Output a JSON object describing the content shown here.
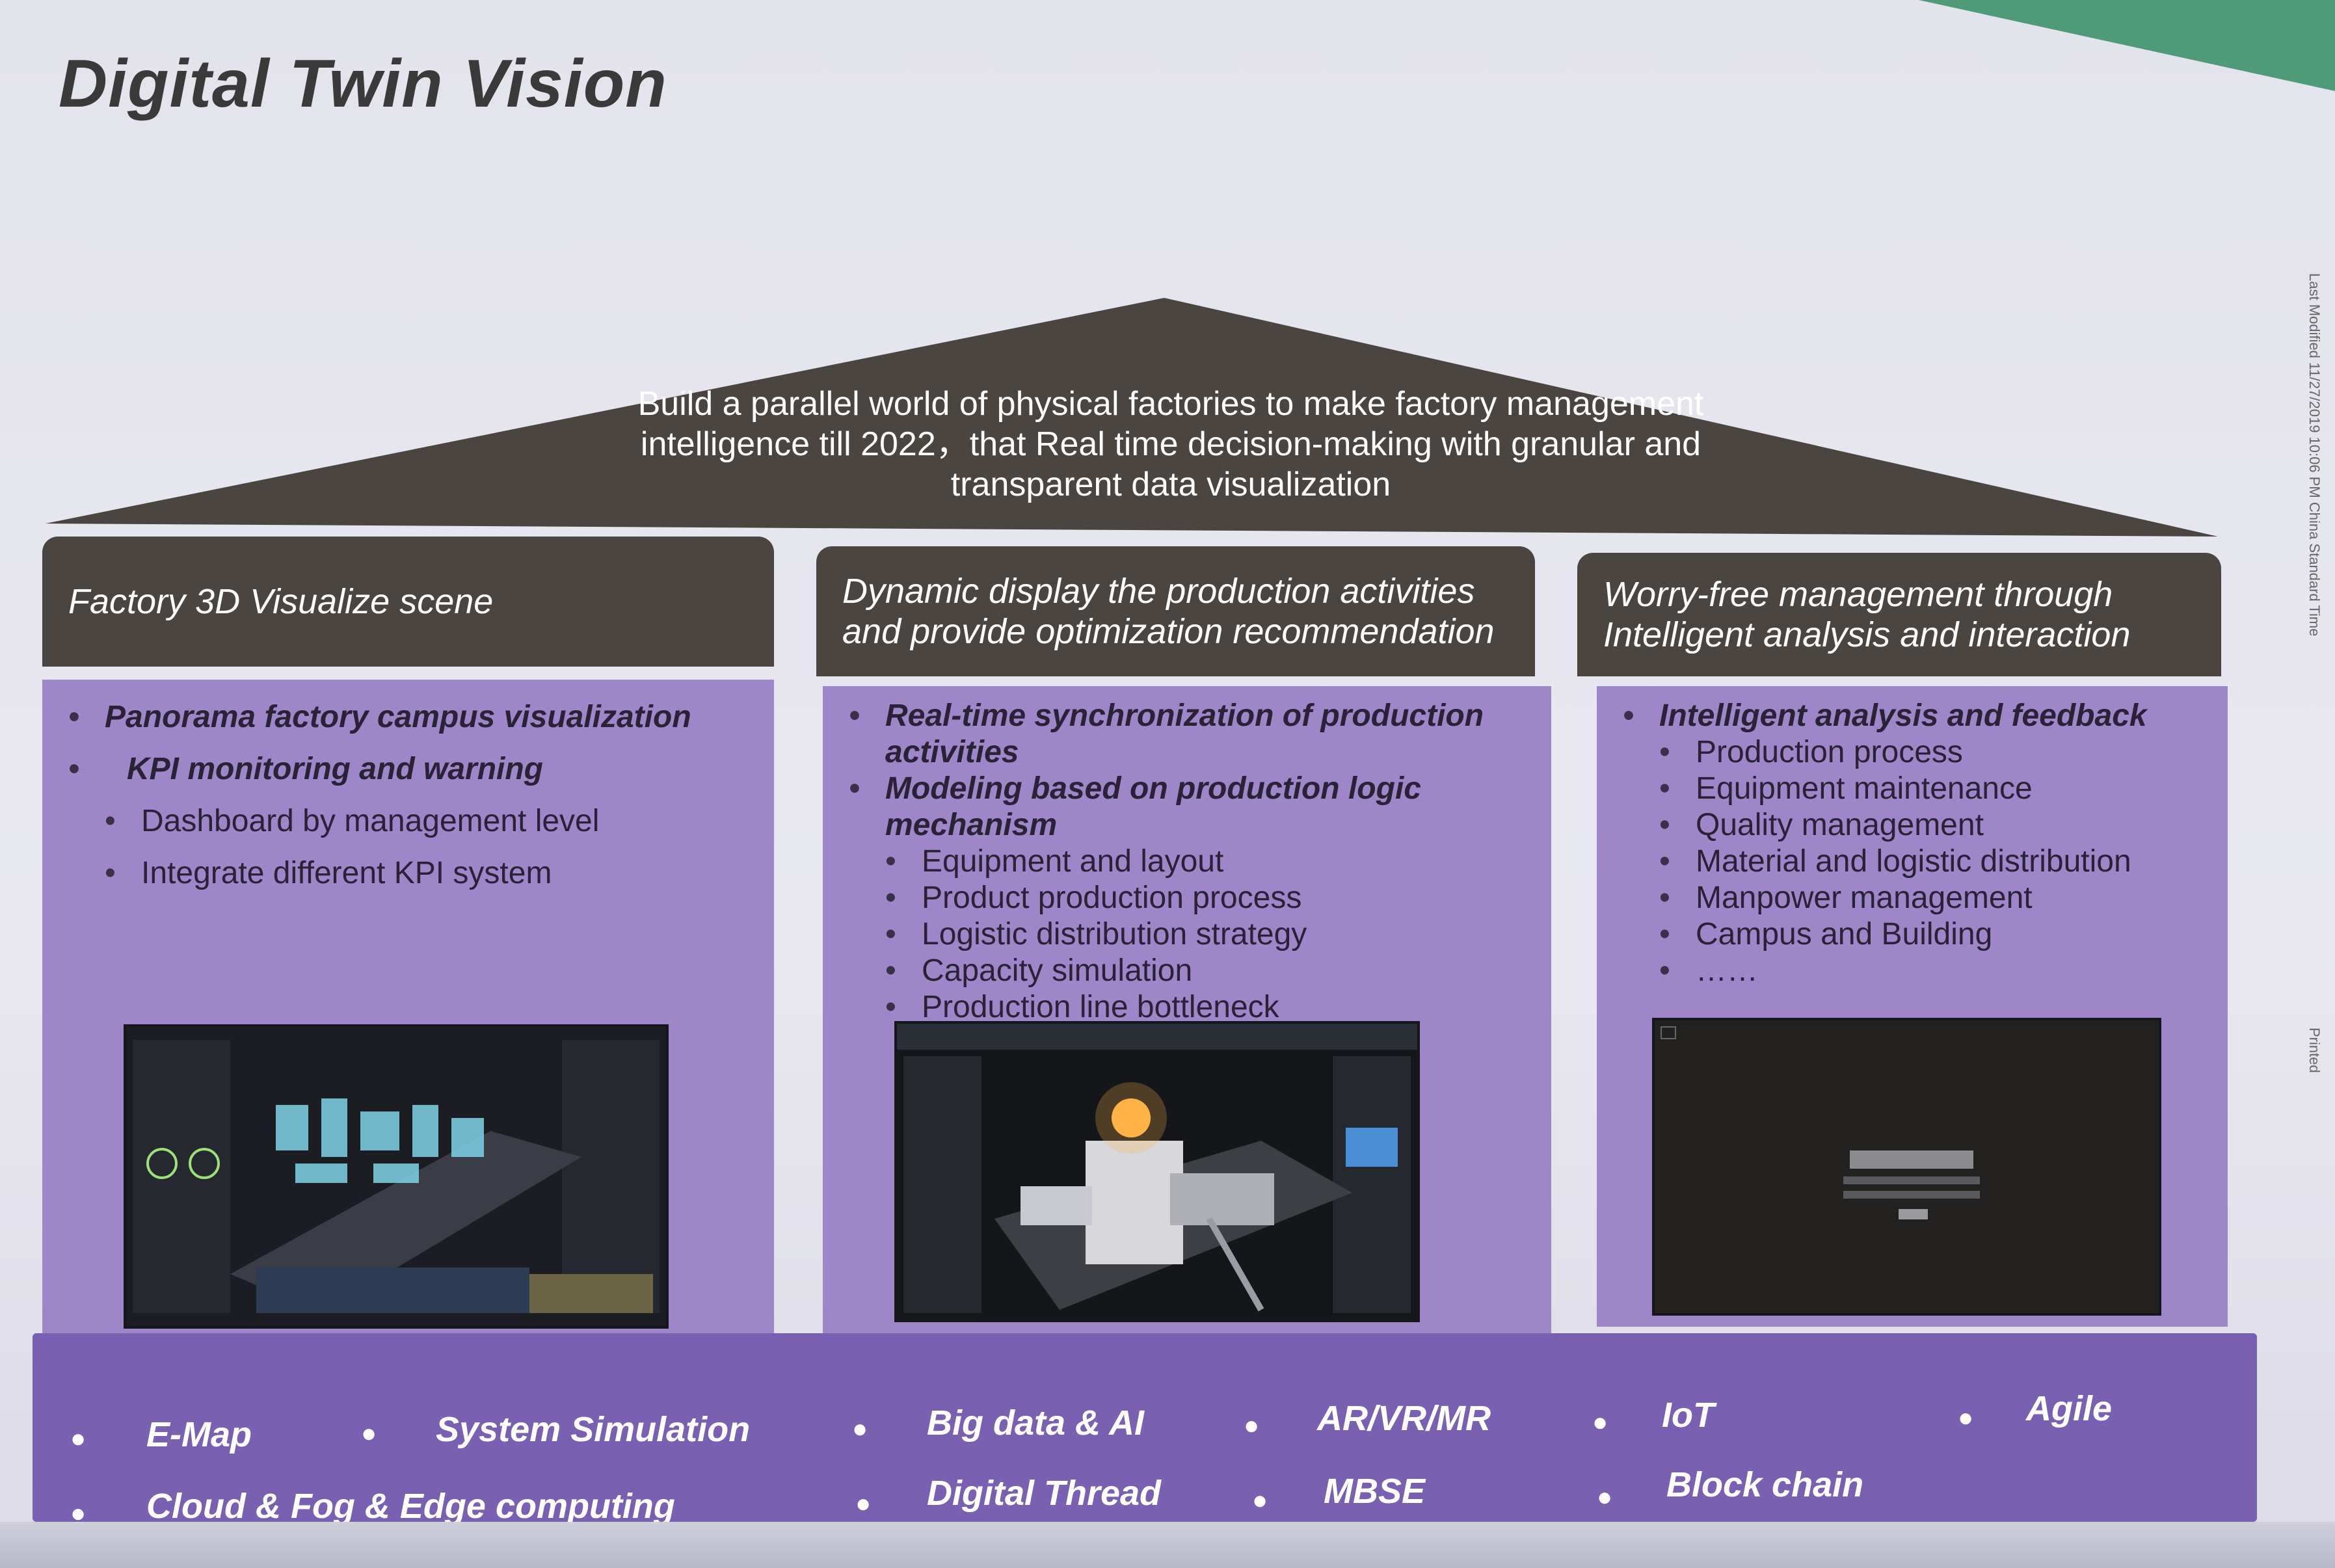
{
  "title": "Digital Twin Vision",
  "vision": "Build a parallel world of physical factories to make factory management intelligence till 2022，that Real time decision-making with granular and transparent data visualization",
  "columns": [
    {
      "header": "Factory 3D Visualize scene",
      "items": [
        {
          "text": "Panorama factory campus visualization",
          "level": 1
        },
        {
          "text": "KPI monitoring and warning",
          "level": 1
        },
        {
          "text": "Dashboard  by management level",
          "level": 2
        },
        {
          "text": "Integrate different KPI system",
          "level": 2
        }
      ],
      "screenshot_icon": "factory-3d-dashboard"
    },
    {
      "header": "Dynamic display the production activities and provide optimization recommendation",
      "items": [
        {
          "text": "Real-time synchronization of production activities",
          "level": 1
        },
        {
          "text": "Modeling based on production logic mechanism",
          "level": 1
        },
        {
          "text": "Equipment and layout",
          "level": 2
        },
        {
          "text": "Product production process",
          "level": 2
        },
        {
          "text": "Logistic distribution strategy",
          "level": 2
        },
        {
          "text": "Capacity simulation",
          "level": 2
        },
        {
          "text": "Production line bottleneck",
          "level": 2
        }
      ],
      "screenshot_icon": "production-line-3d-view"
    },
    {
      "header": "Worry-free management through Intelligent analysis and interaction",
      "items": [
        {
          "text": "Intelligent analysis and feedback",
          "level": 1
        },
        {
          "text": "Production process",
          "level": 2
        },
        {
          "text": "Equipment maintenance",
          "level": 2
        },
        {
          "text": "Quality management",
          "level": 2
        },
        {
          "text": "Material and logistic distribution",
          "level": 2
        },
        {
          "text": "Manpower management",
          "level": 2
        },
        {
          "text": "Campus and Building",
          "level": 2
        },
        {
          "text": "……",
          "level": 2
        }
      ],
      "screenshot_icon": "analysis-login-dialog"
    }
  ],
  "technologies": {
    "row1": [
      "E-Map",
      "System Simulation",
      "Big data & AI",
      "AR/VR/MR",
      "IoT",
      "Agile"
    ],
    "row2": [
      "Cloud & Fog & Edge computing",
      "Digital Thread",
      "MBSE",
      "Block chain"
    ]
  },
  "side_notes": {
    "modified": "Last Modified 11/27/2019 10:06 PM China Standard Time",
    "printed": "Printed"
  },
  "colors": {
    "header_bg": "#4a4540",
    "body_bg": "#9d87c9",
    "base_bg": "#7a60b0",
    "accent": "#4f9a79"
  }
}
